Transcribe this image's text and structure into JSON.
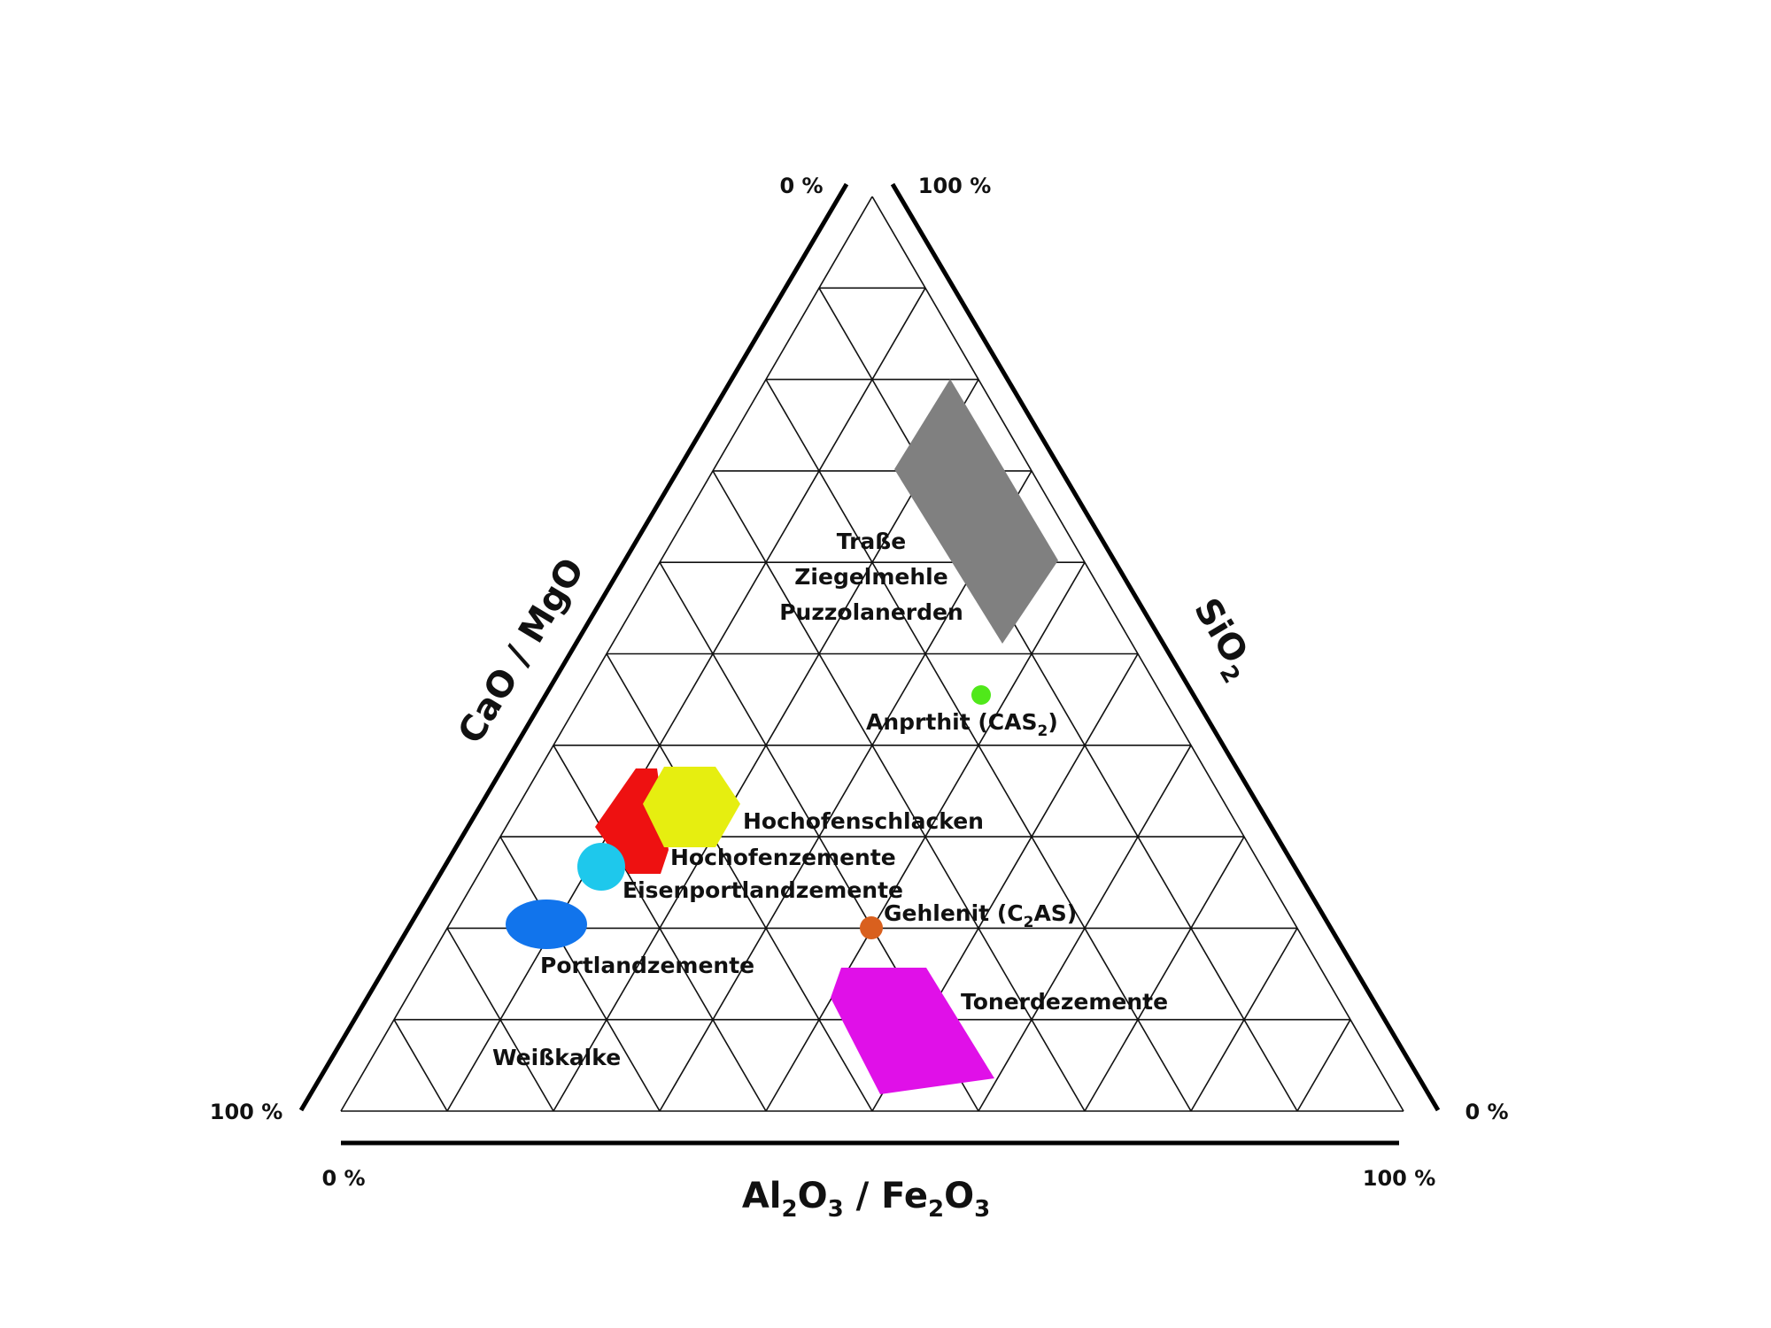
{
  "axes": {
    "left": {
      "title": "CaO / MgO",
      "tick_top": "0 %",
      "tick_bottom": "100 %"
    },
    "right": {
      "title_main": "SiO",
      "title_sub": "2",
      "tick_top": "100 %",
      "tick_bottom": "0 %"
    },
    "bottom": {
      "title_parts": [
        "Al",
        "2",
        "O",
        "3",
        " / Fe",
        "2",
        "O",
        "3"
      ],
      "tick_left": "0 %",
      "tick_right": "100 %"
    }
  },
  "regions": [
    {
      "name": "Traße / Ziegelmehle / Puzzolanerden",
      "color": "#808080"
    },
    {
      "name": "Hochofenzemente",
      "color": "#ee1111"
    },
    {
      "name": "Hochofenschlacken",
      "color": "#e6ee10"
    },
    {
      "name": "Eisenportlandzemente",
      "color": "#1ec8ec"
    },
    {
      "name": "Portlandzemente",
      "color": "#1174ec"
    },
    {
      "name": "Tonerdezemente",
      "color": "#e010e8"
    },
    {
      "name": "Anprthit (CAS2)",
      "color": "#50e81a"
    },
    {
      "name": "Gehlenit (C2AS)",
      "color": "#d9601e"
    }
  ],
  "labels": {
    "trasse": "Traße",
    "ziegelmehle": "Ziegelmehle",
    "puzzolanerden": "Puzzolanerden",
    "anorthit_main": "Anprthit (CAS",
    "anorthit_sub": "2",
    "anorthit_end": ")",
    "hochofenschlacken": "Hochofenschlacken",
    "hochofenzemente": "Hochofenzemente",
    "eisenportlandzemente": "Eisenportlandzemente",
    "gehlenit_main": "Gehlenit (C",
    "gehlenit_sub": "2",
    "gehlenit_end": "AS)",
    "portlandzemente": "Portlandzemente",
    "tonerdezemente": "Tonerdezemente",
    "weisskalke": "Weißkalke"
  }
}
